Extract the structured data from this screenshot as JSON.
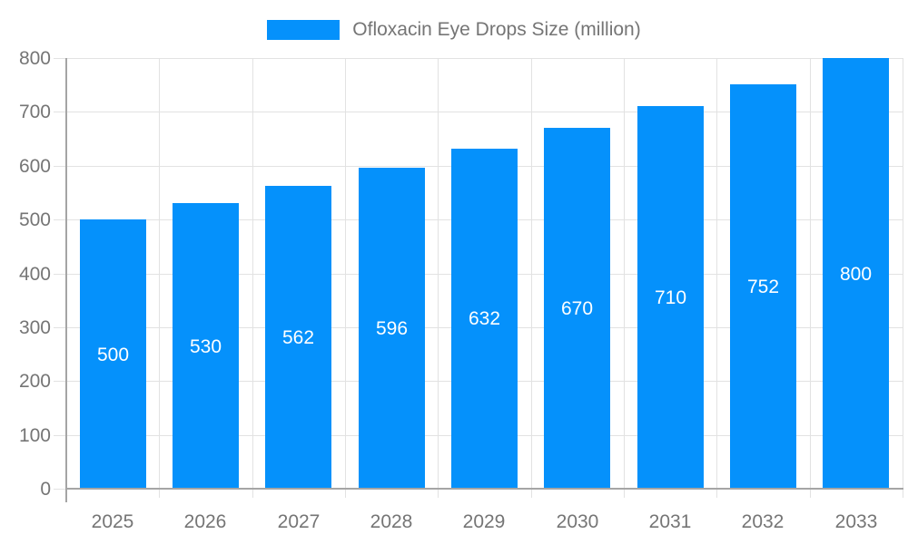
{
  "legend": {
    "label": "Ofloxacin Eye Drops Size (million)",
    "swatch_color": "#0591FB"
  },
  "colors": {
    "bar": "#0591FB",
    "grid": "#E2E2E2",
    "axis": "#A5A5A5",
    "tick_text": "#757575",
    "bar_label_text": "#FFFFFF",
    "background": "#FFFFFF"
  },
  "chart_data": {
    "type": "bar",
    "title": "Ofloxacin Eye Drops Size (million)",
    "categories": [
      "2025",
      "2026",
      "2027",
      "2028",
      "2029",
      "2030",
      "2031",
      "2032",
      "2033"
    ],
    "values": [
      500,
      530,
      562,
      596,
      632,
      670,
      710,
      752,
      800
    ],
    "xlabel": "",
    "ylabel": "",
    "ylim": [
      0,
      800
    ],
    "ytick_step": 100,
    "ytick_labels": [
      "0",
      "100",
      "200",
      "300",
      "400",
      "500",
      "600",
      "700",
      "800"
    ],
    "grid": true,
    "legend_position": "top",
    "value_labels": "inside-center-white"
  }
}
